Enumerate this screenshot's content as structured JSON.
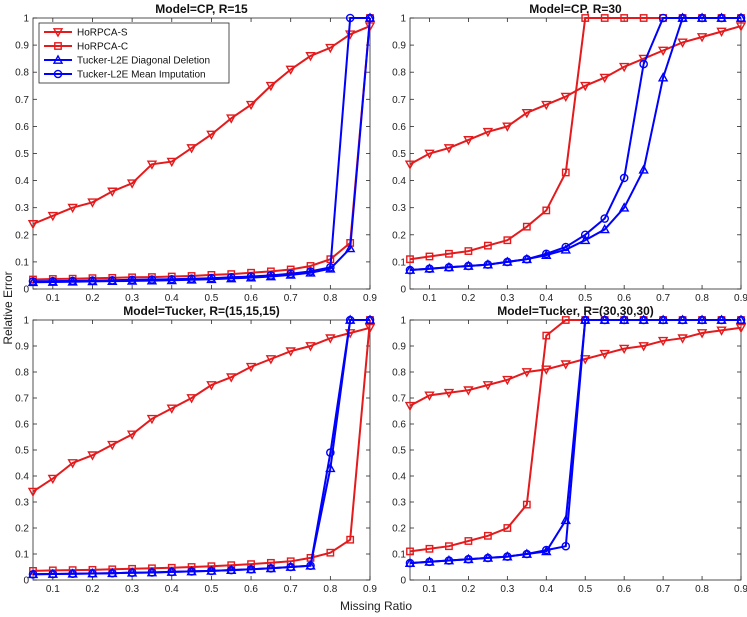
{
  "figure": {
    "xlabel": "Missing Ratio",
    "ylabel": "Relative Error"
  },
  "series_styles": [
    {
      "name": "HoRPCA-S",
      "color": "#e41a1c",
      "marker": "triangle-down"
    },
    {
      "name": "HoRPCA-C",
      "color": "#e41a1c",
      "marker": "square"
    },
    {
      "name": "Tucker-L2E Diagonal Deletion",
      "color": "#0000ff",
      "marker": "triangle-up"
    },
    {
      "name": "Tucker-L2E Mean Imputation",
      "color": "#0000ff",
      "marker": "circle"
    }
  ],
  "chart_data": [
    {
      "type": "line",
      "title": "Model=CP, R=15",
      "xlabel": "",
      "ylabel": "",
      "xlim": [
        0.05,
        0.9
      ],
      "ylim": [
        0,
        1
      ],
      "xticks": [
        "0.1",
        "0.2",
        "0.3",
        "0.4",
        "0.5",
        "0.6",
        "0.7",
        "0.8",
        "0.9"
      ],
      "yticks": [
        "0",
        "0.1",
        "0.2",
        "0.3",
        "0.4",
        "0.5",
        "0.6",
        "0.7",
        "0.8",
        "0.9",
        "1"
      ],
      "legend": "top-left",
      "x": [
        0.05,
        0.1,
        0.15,
        0.2,
        0.25,
        0.3,
        0.35,
        0.4,
        0.45,
        0.5,
        0.55,
        0.6,
        0.65,
        0.7,
        0.75,
        0.8,
        0.85,
        0.9
      ],
      "series": [
        {
          "name": "HoRPCA-S",
          "values": [
            0.24,
            0.27,
            0.3,
            0.32,
            0.36,
            0.39,
            0.46,
            0.47,
            0.52,
            0.57,
            0.63,
            0.68,
            0.75,
            0.81,
            0.86,
            0.89,
            0.94,
            0.97
          ]
        },
        {
          "name": "HoRPCA-C",
          "values": [
            0.035,
            0.037,
            0.038,
            0.04,
            0.041,
            0.043,
            0.044,
            0.046,
            0.048,
            0.052,
            0.055,
            0.06,
            0.065,
            0.072,
            0.085,
            0.11,
            0.17,
            1.0
          ]
        },
        {
          "name": "Tucker-L2E Diagonal Deletion",
          "values": [
            0.025,
            0.026,
            0.027,
            0.028,
            0.029,
            0.03,
            0.031,
            0.032,
            0.034,
            0.036,
            0.039,
            0.042,
            0.046,
            0.052,
            0.06,
            0.075,
            0.15,
            1.0
          ]
        },
        {
          "name": "Tucker-L2E Mean Imputation",
          "values": [
            0.028,
            0.029,
            0.03,
            0.031,
            0.032,
            0.034,
            0.035,
            0.036,
            0.038,
            0.04,
            0.043,
            0.046,
            0.05,
            0.056,
            0.065,
            0.08,
            1.0,
            1.0
          ]
        }
      ]
    },
    {
      "type": "line",
      "title": "Model=CP, R=30",
      "xlabel": "",
      "ylabel": "",
      "xlim": [
        0.05,
        0.9
      ],
      "ylim": [
        0,
        1
      ],
      "xticks": [
        "0.1",
        "0.2",
        "0.3",
        "0.4",
        "0.5",
        "0.6",
        "0.7",
        "0.8",
        "0.9"
      ],
      "yticks": [
        "0",
        "0.1",
        "0.2",
        "0.3",
        "0.4",
        "0.5",
        "0.6",
        "0.7",
        "0.8",
        "0.9",
        "1"
      ],
      "legend": "none",
      "x": [
        0.05,
        0.1,
        0.15,
        0.2,
        0.25,
        0.3,
        0.35,
        0.4,
        0.45,
        0.5,
        0.55,
        0.6,
        0.65,
        0.7,
        0.75,
        0.8,
        0.85,
        0.9
      ],
      "series": [
        {
          "name": "HoRPCA-S",
          "values": [
            0.46,
            0.5,
            0.52,
            0.55,
            0.58,
            0.6,
            0.65,
            0.68,
            0.71,
            0.75,
            0.78,
            0.82,
            0.85,
            0.88,
            0.91,
            0.93,
            0.95,
            0.97
          ]
        },
        {
          "name": "HoRPCA-C",
          "values": [
            0.11,
            0.12,
            0.13,
            0.14,
            0.16,
            0.18,
            0.23,
            0.29,
            0.43,
            1.0,
            1.0,
            1.0,
            1.0,
            1.0,
            1.0,
            1.0,
            1.0,
            1.0
          ]
        },
        {
          "name": "Tucker-L2E Diagonal Deletion",
          "values": [
            0.07,
            0.075,
            0.08,
            0.085,
            0.09,
            0.1,
            0.11,
            0.125,
            0.145,
            0.18,
            0.22,
            0.3,
            0.44,
            0.78,
            1.0,
            1.0,
            1.0,
            1.0
          ]
        },
        {
          "name": "Tucker-L2E Mean Imputation",
          "values": [
            0.07,
            0.075,
            0.08,
            0.085,
            0.09,
            0.1,
            0.11,
            0.13,
            0.155,
            0.2,
            0.26,
            0.41,
            0.83,
            1.0,
            1.0,
            1.0,
            1.0,
            1.0
          ]
        }
      ]
    },
    {
      "type": "line",
      "title": "Model=Tucker, R=(15,15,15)",
      "xlabel": "",
      "ylabel": "",
      "xlim": [
        0.05,
        0.9
      ],
      "ylim": [
        0,
        1
      ],
      "xticks": [
        "0.1",
        "0.2",
        "0.3",
        "0.4",
        "0.5",
        "0.6",
        "0.7",
        "0.8",
        "0.9"
      ],
      "yticks": [
        "0",
        "0.1",
        "0.2",
        "0.3",
        "0.4",
        "0.5",
        "0.6",
        "0.7",
        "0.8",
        "0.9",
        "1"
      ],
      "legend": "none",
      "x": [
        0.05,
        0.1,
        0.15,
        0.2,
        0.25,
        0.3,
        0.35,
        0.4,
        0.45,
        0.5,
        0.55,
        0.6,
        0.65,
        0.7,
        0.75,
        0.8,
        0.85,
        0.9
      ],
      "series": [
        {
          "name": "HoRPCA-S",
          "values": [
            0.34,
            0.39,
            0.45,
            0.48,
            0.52,
            0.56,
            0.62,
            0.66,
            0.7,
            0.75,
            0.78,
            0.82,
            0.85,
            0.88,
            0.9,
            0.93,
            0.95,
            0.97
          ]
        },
        {
          "name": "HoRPCA-C",
          "values": [
            0.035,
            0.037,
            0.038,
            0.039,
            0.041,
            0.043,
            0.045,
            0.047,
            0.05,
            0.053,
            0.057,
            0.061,
            0.066,
            0.072,
            0.085,
            0.105,
            0.155,
            1.0
          ]
        },
        {
          "name": "Tucker-L2E Diagonal Deletion",
          "values": [
            0.022,
            0.023,
            0.024,
            0.025,
            0.026,
            0.028,
            0.029,
            0.031,
            0.033,
            0.035,
            0.038,
            0.041,
            0.045,
            0.05,
            0.055,
            0.43,
            1.0,
            1.0
          ]
        },
        {
          "name": "Tucker-L2E Mean Imputation",
          "values": [
            0.022,
            0.023,
            0.024,
            0.025,
            0.026,
            0.028,
            0.029,
            0.031,
            0.033,
            0.035,
            0.038,
            0.041,
            0.045,
            0.05,
            0.055,
            0.49,
            1.0,
            1.0
          ]
        }
      ]
    },
    {
      "type": "line",
      "title": "Model=Tucker, R=(30,30,30)",
      "xlabel": "",
      "ylabel": "",
      "xlim": [
        0.05,
        0.9
      ],
      "ylim": [
        0,
        1
      ],
      "xticks": [
        "0.1",
        "0.2",
        "0.3",
        "0.4",
        "0.5",
        "0.6",
        "0.7",
        "0.8",
        "0.9"
      ],
      "yticks": [
        "0",
        "0.1",
        "0.2",
        "0.3",
        "0.4",
        "0.5",
        "0.6",
        "0.7",
        "0.8",
        "0.9",
        "1"
      ],
      "legend": "none",
      "x": [
        0.05,
        0.1,
        0.15,
        0.2,
        0.25,
        0.3,
        0.35,
        0.4,
        0.45,
        0.5,
        0.55,
        0.6,
        0.65,
        0.7,
        0.75,
        0.8,
        0.85,
        0.9
      ],
      "series": [
        {
          "name": "HoRPCA-S",
          "values": [
            0.67,
            0.71,
            0.72,
            0.73,
            0.75,
            0.77,
            0.8,
            0.81,
            0.83,
            0.85,
            0.87,
            0.89,
            0.9,
            0.92,
            0.93,
            0.95,
            0.96,
            0.97
          ]
        },
        {
          "name": "HoRPCA-C",
          "values": [
            0.11,
            0.12,
            0.13,
            0.15,
            0.17,
            0.2,
            0.29,
            0.94,
            1.0,
            1.0,
            1.0,
            1.0,
            1.0,
            1.0,
            1.0,
            1.0,
            1.0,
            1.0
          ]
        },
        {
          "name": "Tucker-L2E Diagonal Deletion",
          "values": [
            0.065,
            0.07,
            0.075,
            0.08,
            0.085,
            0.09,
            0.1,
            0.11,
            0.23,
            1.0,
            1.0,
            1.0,
            1.0,
            1.0,
            1.0,
            1.0,
            1.0,
            1.0
          ]
        },
        {
          "name": "Tucker-L2E Mean Imputation",
          "values": [
            0.065,
            0.07,
            0.075,
            0.08,
            0.085,
            0.09,
            0.1,
            0.115,
            0.13,
            1.0,
            1.0,
            1.0,
            1.0,
            1.0,
            1.0,
            1.0,
            1.0,
            1.0
          ]
        }
      ]
    }
  ]
}
